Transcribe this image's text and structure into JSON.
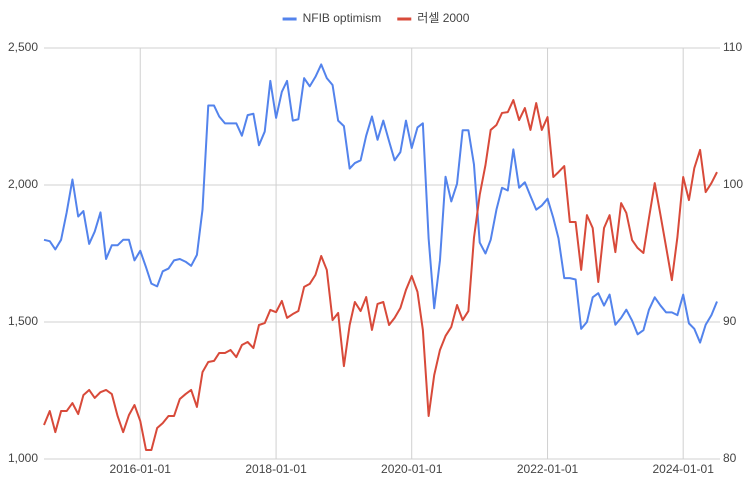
{
  "chart_data": {
    "type": "line",
    "x": [
      "2014-08-01",
      "2014-09-01",
      "2014-10-01",
      "2014-11-01",
      "2014-12-01",
      "2015-01-01",
      "2015-02-01",
      "2015-03-01",
      "2015-04-01",
      "2015-05-01",
      "2015-06-01",
      "2015-07-01",
      "2015-08-01",
      "2015-09-01",
      "2015-10-01",
      "2015-11-01",
      "2015-12-01",
      "2016-01-01",
      "2016-02-01",
      "2016-03-01",
      "2016-04-01",
      "2016-05-01",
      "2016-06-01",
      "2016-07-01",
      "2016-08-01",
      "2016-09-01",
      "2016-10-01",
      "2016-11-01",
      "2016-12-01",
      "2017-01-01",
      "2017-02-01",
      "2017-03-01",
      "2017-04-01",
      "2017-05-01",
      "2017-06-01",
      "2017-07-01",
      "2017-08-01",
      "2017-09-01",
      "2017-10-01",
      "2017-11-01",
      "2017-12-01",
      "2018-01-01",
      "2018-02-01",
      "2018-03-01",
      "2018-04-01",
      "2018-05-01",
      "2018-06-01",
      "2018-07-01",
      "2018-08-01",
      "2018-09-01",
      "2018-10-01",
      "2018-11-01",
      "2018-12-01",
      "2019-01-01",
      "2019-02-01",
      "2019-03-01",
      "2019-04-01",
      "2019-05-01",
      "2019-06-01",
      "2019-07-01",
      "2019-08-01",
      "2019-09-01",
      "2019-10-01",
      "2019-11-01",
      "2019-12-01",
      "2020-01-01",
      "2020-02-01",
      "2020-03-01",
      "2020-04-01",
      "2020-05-01",
      "2020-06-01",
      "2020-07-01",
      "2020-08-01",
      "2020-09-01",
      "2020-10-01",
      "2020-11-01",
      "2020-12-01",
      "2021-01-01",
      "2021-02-01",
      "2021-03-01",
      "2021-04-01",
      "2021-05-01",
      "2021-06-01",
      "2021-07-01",
      "2021-08-01",
      "2021-09-01",
      "2021-10-01",
      "2021-11-01",
      "2021-12-01",
      "2022-01-01",
      "2022-02-01",
      "2022-03-01",
      "2022-04-01",
      "2022-05-01",
      "2022-06-01",
      "2022-07-01",
      "2022-08-01",
      "2022-09-01",
      "2022-10-01",
      "2022-11-01",
      "2022-12-01",
      "2023-01-01",
      "2023-02-01",
      "2023-03-01",
      "2023-04-01",
      "2023-05-01",
      "2023-06-01",
      "2023-07-01",
      "2023-08-01",
      "2023-09-01",
      "2023-10-01",
      "2023-11-01",
      "2023-12-01",
      "2024-01-01",
      "2024-02-01",
      "2024-03-01",
      "2024-04-01",
      "2024-05-01",
      "2024-06-01",
      "2024-07-01"
    ],
    "xlim": [
      "2014-08-01",
      "2024-07-01"
    ],
    "xticks": [
      "2016-01-01",
      "2018-01-01",
      "2020-01-01",
      "2022-01-01",
      "2024-01-01"
    ],
    "series": [
      {
        "name": "NFIB optimism",
        "color": "#5383ec",
        "axis": "y2",
        "values": [
          96.0,
          95.9,
          95.3,
          96.0,
          98.0,
          100.4,
          97.7,
          98.1,
          95.7,
          96.6,
          98.0,
          94.6,
          95.6,
          95.6,
          96.0,
          96.0,
          94.5,
          95.2,
          94.0,
          92.8,
          92.6,
          93.7,
          93.9,
          94.5,
          94.6,
          94.4,
          94.1,
          94.9,
          98.2,
          105.8,
          105.8,
          105.0,
          104.5,
          104.5,
          104.5,
          103.6,
          105.1,
          105.2,
          102.9,
          103.9,
          107.6,
          104.9,
          106.8,
          107.6,
          104.7,
          104.8,
          107.8,
          107.2,
          107.9,
          108.8,
          107.8,
          107.3,
          104.7,
          104.3,
          101.2,
          101.6,
          101.8,
          103.6,
          105.0,
          103.3,
          104.7,
          103.2,
          101.8,
          102.4,
          104.7,
          102.7,
          104.2,
          104.5,
          96.1,
          91.0,
          94.5,
          100.6,
          98.8,
          100.1,
          104.0,
          104.0,
          101.5,
          95.8,
          95.0,
          96.0,
          98.2,
          99.8,
          99.6,
          102.6,
          99.8,
          100.2,
          99.2,
          98.2,
          98.5,
          99.0,
          97.6,
          96.1,
          93.2,
          93.2,
          93.1,
          89.5,
          90.0,
          91.8,
          92.1,
          91.2,
          92.0,
          89.8,
          90.3,
          90.9,
          90.1,
          89.1,
          89.4,
          90.9,
          91.8,
          91.2,
          90.7,
          90.7,
          90.5,
          92.0,
          89.9,
          89.5,
          88.5,
          89.8,
          90.5,
          91.5
        ]
      },
      {
        "name": "러셀 2000",
        "color": "#d84a3a",
        "values": [
          1124,
          1175,
          1098,
          1175,
          1175,
          1204,
          1164,
          1233,
          1252,
          1223,
          1244,
          1252,
          1237,
          1157,
          1098,
          1160,
          1197,
          1139,
          1033,
          1033,
          1113,
          1131,
          1157,
          1157,
          1219,
          1237,
          1252,
          1190,
          1317,
          1354,
          1358,
          1387,
          1387,
          1398,
          1372,
          1416,
          1427,
          1405,
          1489,
          1496,
          1544,
          1536,
          1577,
          1515,
          1529,
          1540,
          1628,
          1639,
          1672,
          1741,
          1690,
          1507,
          1533,
          1339,
          1489,
          1573,
          1540,
          1591,
          1471,
          1566,
          1573,
          1489,
          1515,
          1551,
          1617,
          1668,
          1610,
          1471,
          1157,
          1306,
          1398,
          1449,
          1482,
          1562,
          1507,
          1540,
          1807,
          1964,
          2073,
          2201,
          2219,
          2263,
          2266,
          2310,
          2237,
          2281,
          2201,
          2299,
          2201,
          2248,
          2029,
          2047,
          2069,
          1865,
          1865,
          1690,
          1890,
          1843,
          1646,
          1843,
          1890,
          1755,
          1934,
          1898,
          1799,
          1770,
          1752,
          1880,
          2007,
          1890,
          1774,
          1653,
          1810,
          2029,
          1945,
          2062,
          2128,
          1974,
          2007,
          2047
        ]
      }
    ],
    "ylim": [
      1000,
      2500
    ],
    "yticks": [
      {
        "value": 1000,
        "label": "1,000"
      },
      {
        "value": 1500,
        "label": "1,500"
      },
      {
        "value": 2000,
        "label": "2,000"
      },
      {
        "value": 2500,
        "label": "2,500"
      }
    ],
    "y2lim": [
      80,
      110
    ],
    "y2ticks": [
      80,
      90,
      100,
      110
    ],
    "grid": true,
    "legend": "top"
  }
}
